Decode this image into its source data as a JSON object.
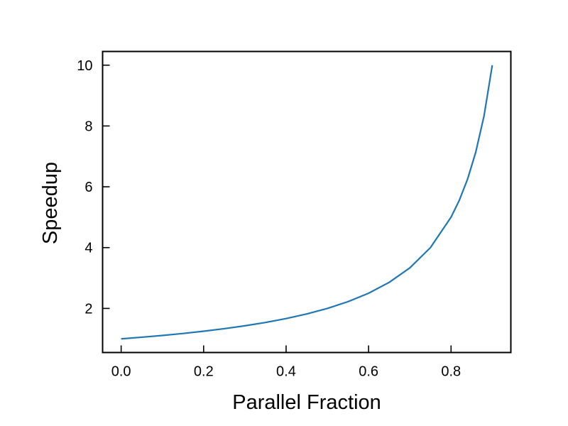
{
  "chart_data": {
    "type": "line",
    "title": "",
    "xlabel": "Parallel Fraction",
    "ylabel": "Speedup",
    "xlim": [
      -0.045,
      0.945
    ],
    "ylim": [
      0.55,
      10.45
    ],
    "xticks": [
      0.0,
      0.2,
      0.4,
      0.6,
      0.8
    ],
    "xtick_labels": [
      "0.0",
      "0.2",
      "0.4",
      "0.6",
      "0.8"
    ],
    "yticks": [
      2,
      4,
      6,
      8,
      10
    ],
    "ytick_labels": [
      "2",
      "4",
      "6",
      "8",
      "10"
    ],
    "grid": false,
    "legend": "none",
    "series": [
      {
        "color": "#1f77b4",
        "x": [
          0.0,
          0.05,
          0.1,
          0.15,
          0.2,
          0.25,
          0.3,
          0.35,
          0.4,
          0.45,
          0.5,
          0.55,
          0.6,
          0.65,
          0.7,
          0.75,
          0.8,
          0.82,
          0.84,
          0.86,
          0.88,
          0.9
        ],
        "y": [
          1.0,
          1.053,
          1.111,
          1.176,
          1.25,
          1.333,
          1.429,
          1.538,
          1.667,
          1.818,
          2.0,
          2.222,
          2.5,
          2.857,
          3.333,
          4.0,
          5.0,
          5.556,
          6.25,
          7.143,
          8.333,
          10.0
        ]
      }
    ]
  }
}
